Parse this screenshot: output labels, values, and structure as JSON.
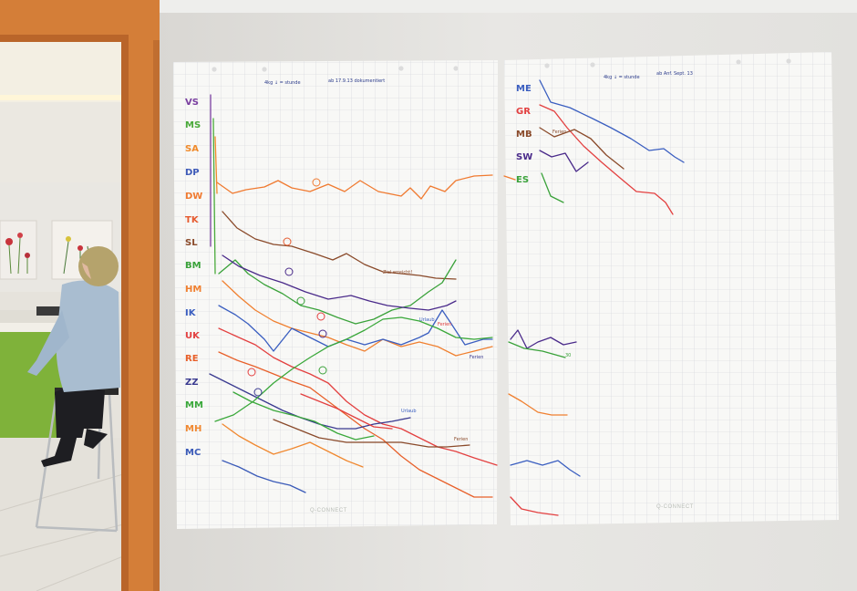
{
  "sheet_left": {
    "header_left": "4kg ↓ = stunde",
    "header_right": "ab 17.9.13 dokumentiert",
    "brand": "Q-CONNECT",
    "rows": [
      {
        "label": "VS",
        "color": "#7a3fa0"
      },
      {
        "label": "MS",
        "color": "#4aaa3a"
      },
      {
        "label": "SA",
        "color": "#f08a2a"
      },
      {
        "label": "DP",
        "color": "#3d5ab8"
      },
      {
        "label": "DW",
        "color": "#f07a30"
      },
      {
        "label": "TK",
        "color": "#e65a2e"
      },
      {
        "label": "SL",
        "color": "#8a4a2a"
      },
      {
        "label": "BM",
        "color": "#3aa23a"
      },
      {
        "label": "HM",
        "color": "#f08030"
      },
      {
        "label": "IK",
        "color": "#3a5ec0"
      },
      {
        "label": "UK",
        "color": "#e34040"
      },
      {
        "label": "RE",
        "color": "#e8602a"
      },
      {
        "label": "ZZ",
        "color": "#3a3a90"
      },
      {
        "label": "MM",
        "color": "#3aa83a"
      },
      {
        "label": "MH",
        "color": "#f08830"
      },
      {
        "label": "MC",
        "color": "#3a5ab8"
      }
    ],
    "annotations": [
      "Ziel erreicht!",
      "Ferien",
      "Ferien",
      "Urlaub",
      "Ferien",
      "Urlaub"
    ]
  },
  "sheet_right": {
    "header_left": "4kg ↓ = stunde",
    "header_right": "ab Anf. Sept. 13",
    "brand": "Q-CONNECT",
    "rows": [
      {
        "label": "ME",
        "color": "#3a5ec0"
      },
      {
        "label": "GR",
        "color": "#e34040"
      },
      {
        "label": "MB",
        "color": "#8a4a2a"
      },
      {
        "label": "SW",
        "color": "#4a2a8a"
      },
      {
        "label": "ES",
        "color": "#3aa23a"
      }
    ],
    "annotations": [
      "Ferien",
      "30"
    ]
  },
  "colors": {
    "wall": "#e7e6e3",
    "paper": "#f7f7f5",
    "grid": "#c8cbd2",
    "door_frame": "#cf7a34"
  }
}
